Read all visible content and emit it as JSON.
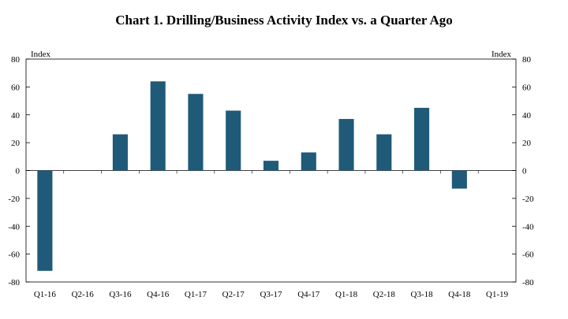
{
  "chart_data": {
    "type": "bar",
    "title": "Chart 1. Drilling/Business Activity Index vs. a Quarter Ago",
    "ylabel_left": "Index",
    "ylabel_right": "Index",
    "categories": [
      "Q1-16",
      "Q2-16",
      "Q3-16",
      "Q4-16",
      "Q1-17",
      "Q2-17",
      "Q3-17",
      "Q4-17",
      "Q1-18",
      "Q2-18",
      "Q3-18",
      "Q4-18",
      "Q1-19"
    ],
    "values": [
      -72,
      null,
      26,
      64,
      55,
      43,
      7,
      13,
      37,
      26,
      45,
      -13,
      null
    ],
    "ylim": [
      -80,
      80
    ],
    "yticks": [
      80,
      60,
      40,
      20,
      0,
      -20,
      -40,
      -60,
      -80
    ],
    "ytick_labels_left": [
      "80",
      "60",
      "40",
      "20",
      "0",
      "-20",
      "-40",
      "-60",
      "-80"
    ],
    "ytick_labels_right": [
      "80",
      "60",
      "40",
      "20",
      "0",
      "-20",
      "-40",
      "-60",
      "-80"
    ],
    "bar_color": "#1f5a78",
    "grid": false,
    "legend": "none"
  }
}
